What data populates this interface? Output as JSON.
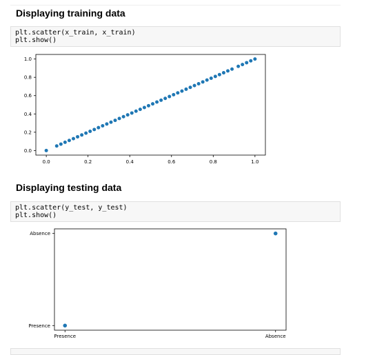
{
  "sections": [
    {
      "heading": "Displaying training data",
      "code": [
        "plt.scatter(x_train, x_train)",
        "plt.show()"
      ]
    },
    {
      "heading": "Displaying testing data",
      "code": [
        "plt.scatter(y_test, y_test)",
        "plt.show()"
      ]
    }
  ],
  "colors": {
    "marker": "#1f77b4"
  },
  "chart_data": [
    {
      "type": "scatter",
      "xlim": [
        -0.05,
        1.05
      ],
      "ylim": [
        -0.05,
        1.05
      ],
      "xticks": [
        0.0,
        0.2,
        0.4,
        0.6,
        0.8,
        1.0
      ],
      "yticks": [
        0.0,
        0.2,
        0.4,
        0.6,
        0.8,
        1.0
      ],
      "xtick_labels": [
        "0.0",
        "0.2",
        "0.4",
        "0.6",
        "0.8",
        "1.0"
      ],
      "ytick_labels": [
        "0.0",
        "0.2",
        "0.4",
        "0.6",
        "0.8",
        "1.0"
      ],
      "x": [
        0.0,
        0.05,
        0.07,
        0.09,
        0.11,
        0.13,
        0.15,
        0.17,
        0.19,
        0.21,
        0.23,
        0.25,
        0.27,
        0.29,
        0.31,
        0.33,
        0.35,
        0.37,
        0.39,
        0.41,
        0.43,
        0.45,
        0.47,
        0.49,
        0.51,
        0.53,
        0.55,
        0.57,
        0.59,
        0.61,
        0.63,
        0.65,
        0.67,
        0.69,
        0.71,
        0.73,
        0.75,
        0.77,
        0.79,
        0.81,
        0.83,
        0.85,
        0.87,
        0.89,
        0.92,
        0.94,
        0.96,
        0.98,
        1.0
      ],
      "y": [
        0.0,
        0.05,
        0.07,
        0.09,
        0.11,
        0.13,
        0.15,
        0.17,
        0.19,
        0.21,
        0.23,
        0.25,
        0.27,
        0.29,
        0.31,
        0.33,
        0.35,
        0.37,
        0.39,
        0.41,
        0.43,
        0.45,
        0.47,
        0.49,
        0.51,
        0.53,
        0.55,
        0.57,
        0.59,
        0.61,
        0.63,
        0.65,
        0.67,
        0.69,
        0.71,
        0.73,
        0.75,
        0.77,
        0.79,
        0.81,
        0.83,
        0.85,
        0.87,
        0.89,
        0.92,
        0.94,
        0.96,
        0.98,
        1.0
      ],
      "grid": false
    },
    {
      "type": "scatter",
      "categories": [
        "Presence",
        "Absence"
      ],
      "x": [
        "Presence",
        "Absence"
      ],
      "y": [
        "Presence",
        "Absence"
      ],
      "xtick_labels": [
        "Presence",
        "Absence"
      ],
      "ytick_labels": [
        "Presence",
        "Absence"
      ],
      "grid": false
    }
  ]
}
